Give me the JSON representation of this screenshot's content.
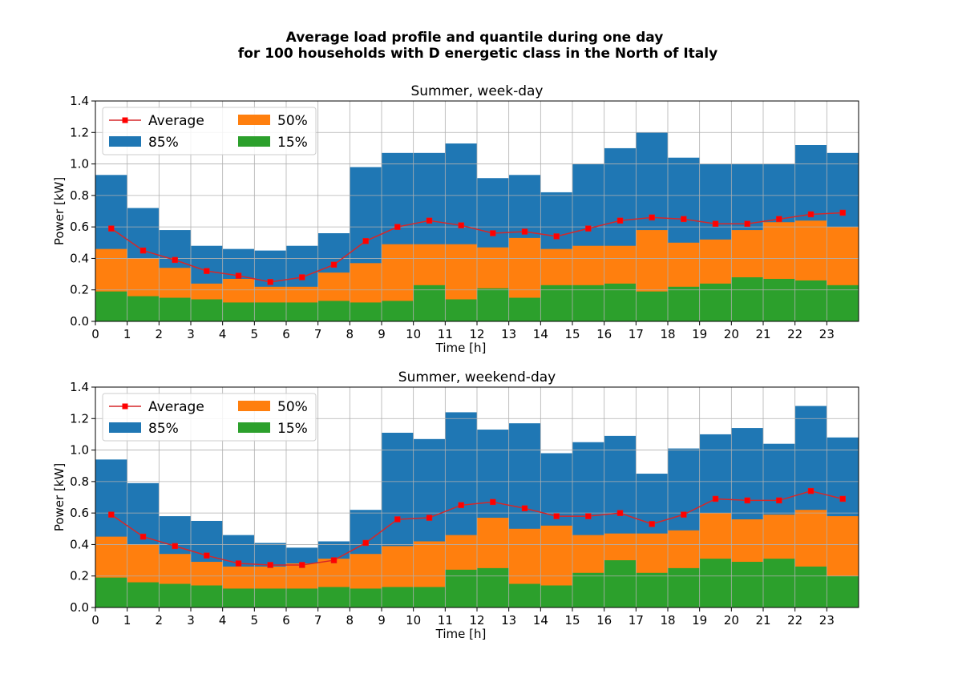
{
  "suptitle_line1": "Average load profile and quantile during one day",
  "suptitle_line2": "for 100 households with D energetic class in the North of Italy",
  "colors": {
    "average": "#d62728",
    "average_marker": "#ff0000",
    "q85": "#1f77b4",
    "q50": "#ff7f0e",
    "q15": "#2ca02c",
    "grid": "#b0b0b0"
  },
  "chart_data": [
    {
      "type": "bar",
      "title": "Summer, week-day",
      "xlabel": "Time [h]",
      "ylabel": "Power [kW]",
      "xlim": [
        0,
        24
      ],
      "ylim": [
        0,
        1.4
      ],
      "xticks": [
        "0",
        "1",
        "2",
        "3",
        "4",
        "5",
        "6",
        "7",
        "8",
        "9",
        "10",
        "11",
        "12",
        "13",
        "14",
        "15",
        "16",
        "17",
        "18",
        "19",
        "20",
        "21",
        "22",
        "23"
      ],
      "yticks": [
        "0.0",
        "0.2",
        "0.4",
        "0.6",
        "0.8",
        "1.0",
        "1.2",
        "1.4"
      ],
      "grid": true,
      "legend_position": "top-left",
      "legend": [
        "Average",
        "85%",
        "50%",
        "15%"
      ],
      "series": [
        {
          "name": "85%",
          "values": [
            0.93,
            0.72,
            0.58,
            0.48,
            0.46,
            0.45,
            0.48,
            0.56,
            0.98,
            1.07,
            1.07,
            1.13,
            0.91,
            0.93,
            0.82,
            1.0,
            1.1,
            1.2,
            1.04,
            1.0,
            1.0,
            1.0,
            1.12,
            1.07
          ]
        },
        {
          "name": "50%",
          "values": [
            0.46,
            0.4,
            0.34,
            0.24,
            0.27,
            0.22,
            0.22,
            0.31,
            0.37,
            0.49,
            0.49,
            0.49,
            0.47,
            0.53,
            0.46,
            0.48,
            0.48,
            0.58,
            0.5,
            0.52,
            0.58,
            0.63,
            0.64,
            0.6
          ]
        },
        {
          "name": "15%",
          "values": [
            0.19,
            0.16,
            0.15,
            0.14,
            0.12,
            0.12,
            0.12,
            0.13,
            0.12,
            0.13,
            0.23,
            0.14,
            0.21,
            0.15,
            0.23,
            0.23,
            0.24,
            0.19,
            0.22,
            0.24,
            0.28,
            0.27,
            0.26,
            0.23
          ]
        },
        {
          "name": "Average",
          "values": [
            0.59,
            0.45,
            0.39,
            0.32,
            0.29,
            0.25,
            0.28,
            0.36,
            0.51,
            0.6,
            0.64,
            0.61,
            0.56,
            0.57,
            0.54,
            0.59,
            0.64,
            0.66,
            0.65,
            0.62,
            0.62,
            0.65,
            0.68,
            0.69
          ]
        }
      ]
    },
    {
      "type": "bar",
      "title": "Summer, weekend-day",
      "xlabel": "Time [h]",
      "ylabel": "Power [kW]",
      "xlim": [
        0,
        24
      ],
      "ylim": [
        0,
        1.4
      ],
      "xticks": [
        "0",
        "1",
        "2",
        "3",
        "4",
        "5",
        "6",
        "7",
        "8",
        "9",
        "10",
        "11",
        "12",
        "13",
        "14",
        "15",
        "16",
        "17",
        "18",
        "19",
        "20",
        "21",
        "22",
        "23"
      ],
      "yticks": [
        "0.0",
        "0.2",
        "0.4",
        "0.6",
        "0.8",
        "1.0",
        "1.2",
        "1.4"
      ],
      "grid": true,
      "legend_position": "top-left",
      "legend": [
        "Average",
        "85%",
        "50%",
        "15%"
      ],
      "series": [
        {
          "name": "85%",
          "values": [
            0.94,
            0.79,
            0.58,
            0.55,
            0.46,
            0.41,
            0.38,
            0.42,
            0.62,
            1.11,
            1.07,
            1.24,
            1.13,
            1.17,
            0.98,
            1.05,
            1.09,
            0.85,
            1.01,
            1.1,
            1.14,
            1.04,
            1.28,
            1.08
          ]
        },
        {
          "name": "50%",
          "values": [
            0.45,
            0.4,
            0.34,
            0.29,
            0.26,
            0.26,
            0.28,
            0.31,
            0.34,
            0.39,
            0.42,
            0.46,
            0.57,
            0.5,
            0.52,
            0.46,
            0.47,
            0.47,
            0.49,
            0.6,
            0.56,
            0.59,
            0.62,
            0.58
          ]
        },
        {
          "name": "15%",
          "values": [
            0.19,
            0.16,
            0.15,
            0.14,
            0.12,
            0.12,
            0.12,
            0.13,
            0.12,
            0.13,
            0.13,
            0.24,
            0.25,
            0.15,
            0.14,
            0.22,
            0.3,
            0.22,
            0.25,
            0.31,
            0.29,
            0.31,
            0.26,
            0.2
          ]
        },
        {
          "name": "Average",
          "values": [
            0.59,
            0.45,
            0.39,
            0.33,
            0.28,
            0.27,
            0.27,
            0.3,
            0.41,
            0.56,
            0.57,
            0.65,
            0.67,
            0.63,
            0.58,
            0.58,
            0.6,
            0.53,
            0.59,
            0.69,
            0.68,
            0.68,
            0.74,
            0.69
          ]
        }
      ]
    }
  ]
}
